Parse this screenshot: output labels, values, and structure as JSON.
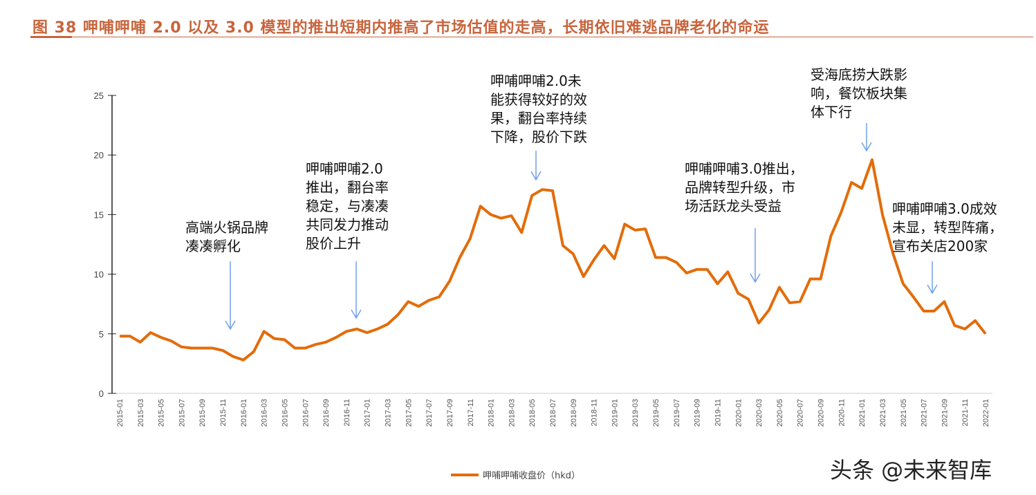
{
  "title": "图 38 呷哺呷哺 2.0 以及 3.0 模型的推出短期内推高了市场估值的走高，长期依旧难逃品牌老化的命运",
  "watermark": "头条 @未来智库",
  "colors": {
    "line": "#e36c0a",
    "arrow": "#6fa0e8",
    "title": "#c8643c"
  },
  "annotations": [
    {
      "lines": [
        "高端火锅品牌",
        "凑凑孵化"
      ],
      "date": "2015-12"
    },
    {
      "lines": [
        "呷哺呷哺2.0",
        "推出，翻台率",
        "稳定，与凑凑",
        "共同发力推动",
        "股价上升"
      ],
      "date": "2016-12"
    },
    {
      "lines": [
        "呷哺呷哺2.0未",
        "能获得较好的效",
        "果，翻台率持续",
        "下降，股价下跌"
      ],
      "date": "2018-06"
    },
    {
      "lines": [
        "呷哺呷哺3.0推出，",
        "品牌转型升级，市",
        "场活跃龙头受益"
      ],
      "date": "2020-02"
    },
    {
      "lines": [
        "受海底捞大跌影",
        "响，餐饮板块集",
        "体下行"
      ],
      "date": "2021-01"
    },
    {
      "lines": [
        "呷哺呷哺3.0成效",
        "未显，转型阵痛，",
        "宣布关店200家"
      ],
      "date": "2021-08"
    }
  ],
  "chart_data": {
    "type": "line",
    "title": "",
    "xlabel": "",
    "ylabel": "",
    "ylim": [
      0,
      25
    ],
    "yticks": [
      0,
      5,
      10,
      15,
      20,
      25
    ],
    "grid": false,
    "legend_position": "bottom-center",
    "xtick_labels": [
      "2015-01",
      "2015-03",
      "2015-05",
      "2015-07",
      "2015-09",
      "2015-11",
      "2016-01",
      "2016-03",
      "2016-05",
      "2016-07",
      "2016-09",
      "2016-11",
      "2017-01",
      "2017-03",
      "2017-05",
      "2017-07",
      "2017-09",
      "2017-11",
      "2018-01",
      "2018-03",
      "2018-05",
      "2018-07",
      "2018-09",
      "2018-11",
      "2019-01",
      "2019-03",
      "2019-05",
      "2019-07",
      "2019-09",
      "2019-11",
      "2020-01",
      "2020-03",
      "2020-05",
      "2020-07",
      "2020-09",
      "2020-11",
      "2021-01",
      "2021-03",
      "2021-05",
      "2021-07",
      "2021-09",
      "2021-11",
      "2022-01"
    ],
    "series": [
      {
        "name": "呷哺呷哺收盘价（hkd）",
        "start": "2015-01",
        "frequency": "monthly",
        "values": [
          4.8,
          4.8,
          4.3,
          5.1,
          4.7,
          4.4,
          3.9,
          3.8,
          3.8,
          3.8,
          3.6,
          3.1,
          2.8,
          3.5,
          5.2,
          4.6,
          4.5,
          3.8,
          3.8,
          4.1,
          4.3,
          4.7,
          5.2,
          5.4,
          5.1,
          5.4,
          5.8,
          6.6,
          7.7,
          7.3,
          7.8,
          8.1,
          9.4,
          11.4,
          13.0,
          15.7,
          15.0,
          14.7,
          14.9,
          13.5,
          16.6,
          17.1,
          17.0,
          12.4,
          11.7,
          9.8,
          11.2,
          12.4,
          11.3,
          14.2,
          13.7,
          13.8,
          11.4,
          11.4,
          11.0,
          10.1,
          10.4,
          10.4,
          9.2,
          10.2,
          8.4,
          7.9,
          5.9,
          7.0,
          8.9,
          7.6,
          7.7,
          9.6,
          9.6,
          13.2,
          15.2,
          17.7,
          17.2,
          19.6,
          15.0,
          11.8,
          9.2,
          8.1,
          6.9,
          6.9,
          7.7,
          5.7,
          5.4,
          6.1,
          5.0
        ]
      }
    ]
  }
}
